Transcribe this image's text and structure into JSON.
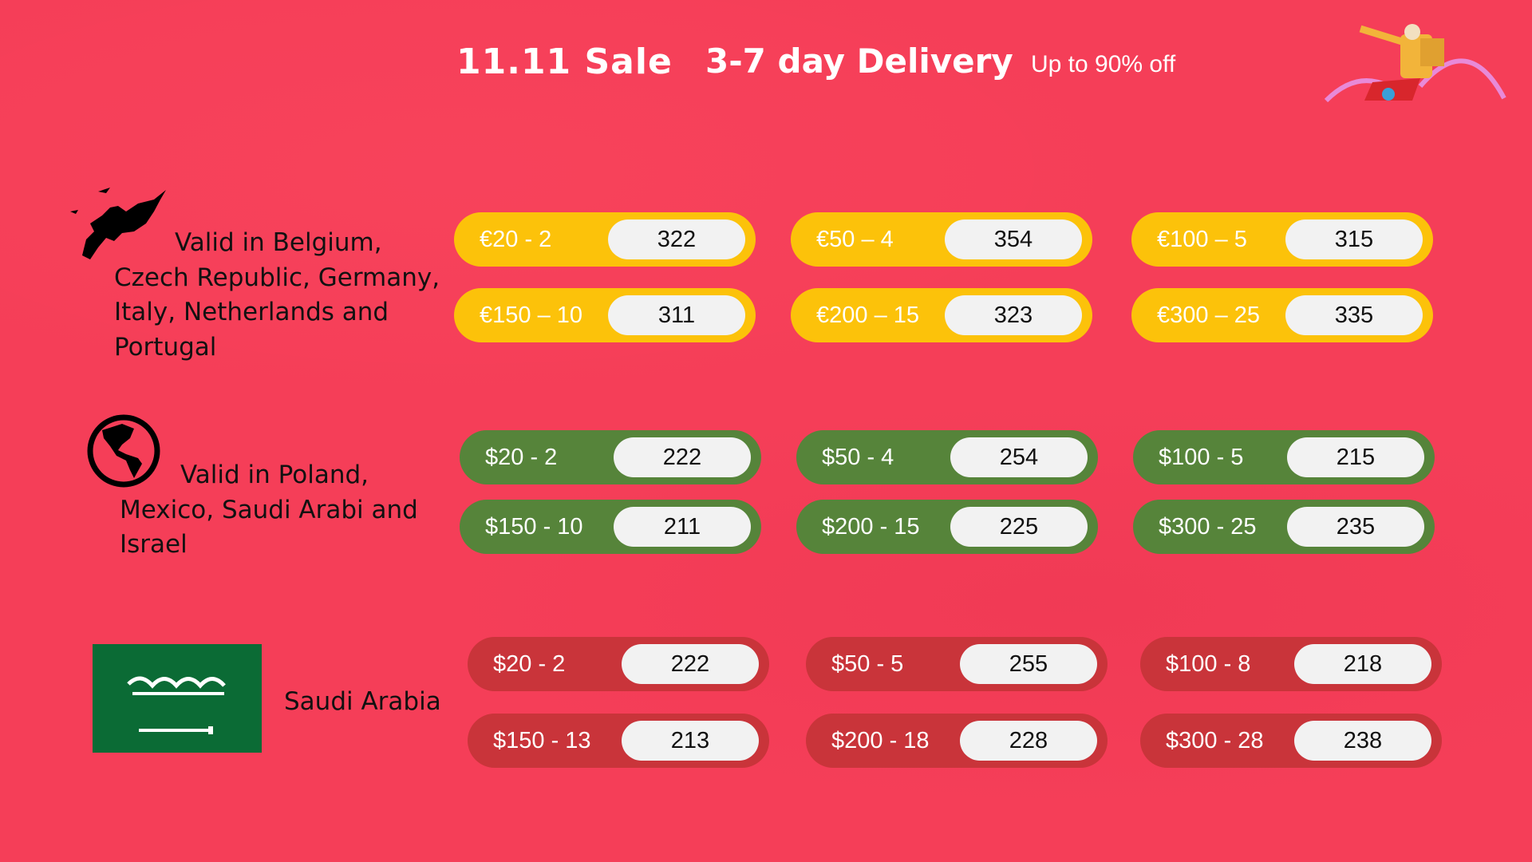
{
  "header": {
    "sale": "11.11 Sale",
    "delivery": "3-7 day Delivery",
    "discount": "Up to 90% off"
  },
  "colors": {
    "background": "#f53e58",
    "europe": "#fcc20a",
    "global": "#56843a",
    "saudi": "#c9343a",
    "code_bg": "#f2f2f2"
  },
  "regions": [
    {
      "icon": "europe-map-icon",
      "text": "Valid in Belgium, Czech Republic, Germany, Italy, Netherlands and Portugal",
      "coupons": [
        {
          "label": "€20 - 2",
          "code": "322"
        },
        {
          "label": "€50 – 4",
          "code": "354"
        },
        {
          "label": "€100 – 5",
          "code": "315"
        },
        {
          "label": "€150 – 10",
          "code": "311"
        },
        {
          "label": "€200 – 15",
          "code": "323"
        },
        {
          "label": "€300 – 25",
          "code": "335"
        }
      ]
    },
    {
      "icon": "globe-americas-icon",
      "text": "Valid in Poland, Mexico, Saudi Arabi and Israel",
      "coupons": [
        {
          "label": "$20 - 2",
          "code": "222"
        },
        {
          "label": "$50 - 4",
          "code": "254"
        },
        {
          "label": "$100 - 5",
          "code": "215"
        },
        {
          "label": "$150 - 10",
          "code": "211"
        },
        {
          "label": "$200 - 15",
          "code": "225"
        },
        {
          "label": "$300 - 25",
          "code": "235"
        }
      ]
    },
    {
      "icon": "saudi-flag-icon",
      "text": "Saudi Arabia",
      "coupons": [
        {
          "label": "$20 - 2",
          "code": "222"
        },
        {
          "label": "$50 - 5",
          "code": "255"
        },
        {
          "label": "$100 - 8",
          "code": "218"
        },
        {
          "label": "$150 - 13",
          "code": "213"
        },
        {
          "label": "$200 - 18",
          "code": "228"
        },
        {
          "label": "$300 - 28",
          "code": "238"
        }
      ]
    }
  ]
}
